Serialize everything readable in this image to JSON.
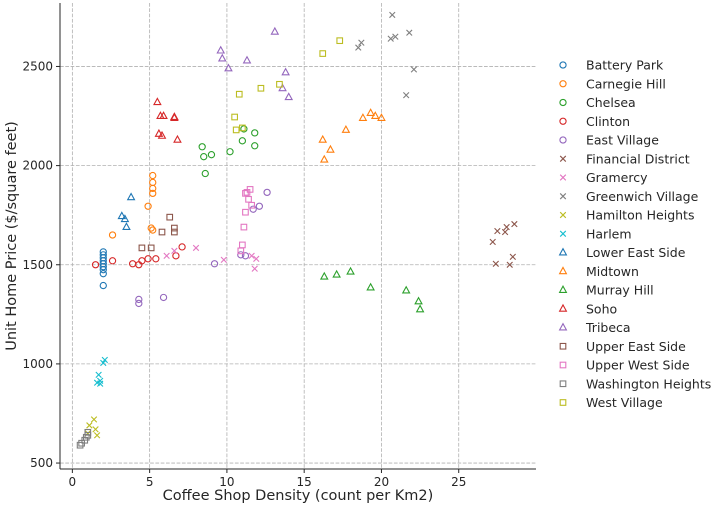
{
  "chart_data": {
    "type": "scatter",
    "title": "",
    "xlabel": "Coffee Shop Density (count per Km2)",
    "ylabel": "Unit Home Price ($/square feet)",
    "xlim": [
      -0.8,
      30
    ],
    "ylim": [
      470,
      2820
    ],
    "xticks": [
      0,
      5,
      10,
      15,
      20,
      25
    ],
    "yticks": [
      500,
      1000,
      1500,
      2000,
      2500
    ],
    "grid": true,
    "grid_style": "dashed",
    "legend_position": "right",
    "series": [
      {
        "name": "Battery Park",
        "color": "#1f77b4",
        "marker": "circle",
        "points": [
          [
            2.0,
            1395
          ],
          [
            2.0,
            1455
          ],
          [
            2.0,
            1475
          ],
          [
            2.0,
            1490
          ],
          [
            2.0,
            1505
          ],
          [
            2.0,
            1520
          ],
          [
            2.0,
            1535
          ],
          [
            2.0,
            1550
          ],
          [
            2.0,
            1565
          ]
        ]
      },
      {
        "name": "Carnegie Hill",
        "color": "#ff7f0e",
        "marker": "circle",
        "points": [
          [
            2.6,
            1650
          ],
          [
            4.9,
            1795
          ],
          [
            5.1,
            1685
          ],
          [
            5.2,
            1675
          ],
          [
            5.2,
            1860
          ],
          [
            5.2,
            1885
          ],
          [
            5.2,
            1915
          ],
          [
            5.2,
            1950
          ]
        ]
      },
      {
        "name": "Chelsea",
        "color": "#2ca02c",
        "marker": "circle",
        "points": [
          [
            8.4,
            2095
          ],
          [
            8.5,
            2045
          ],
          [
            8.6,
            1960
          ],
          [
            9.0,
            2055
          ],
          [
            10.2,
            2070
          ],
          [
            11.0,
            2125
          ],
          [
            11.1,
            2185
          ],
          [
            11.8,
            2100
          ],
          [
            11.8,
            2165
          ]
        ]
      },
      {
        "name": "Clinton",
        "color": "#d62728",
        "marker": "circle",
        "points": [
          [
            1.5,
            1500
          ],
          [
            2.6,
            1520
          ],
          [
            3.9,
            1505
          ],
          [
            4.3,
            1500
          ],
          [
            4.5,
            1520
          ],
          [
            4.9,
            1530
          ],
          [
            5.4,
            1530
          ],
          [
            6.7,
            1545
          ],
          [
            7.1,
            1590
          ]
        ]
      },
      {
        "name": "East Village",
        "color": "#9467bd",
        "marker": "circle",
        "points": [
          [
            4.3,
            1305
          ],
          [
            4.3,
            1325
          ],
          [
            5.9,
            1335
          ],
          [
            9.2,
            1505
          ],
          [
            10.9,
            1550
          ],
          [
            11.2,
            1545
          ],
          [
            11.7,
            1780
          ],
          [
            12.1,
            1795
          ],
          [
            12.6,
            1865
          ]
        ]
      },
      {
        "name": "Financial District",
        "color": "#8c564b",
        "marker": "x",
        "points": [
          [
            27.2,
            1615
          ],
          [
            27.4,
            1505
          ],
          [
            27.5,
            1670
          ],
          [
            28.0,
            1665
          ],
          [
            28.1,
            1690
          ],
          [
            28.3,
            1500
          ],
          [
            28.5,
            1540
          ],
          [
            28.6,
            1705
          ]
        ]
      },
      {
        "name": "Gramercy",
        "color": "#e377c2",
        "marker": "x",
        "points": [
          [
            6.1,
            1545
          ],
          [
            6.6,
            1570
          ],
          [
            8.0,
            1585
          ],
          [
            9.8,
            1525
          ],
          [
            11.6,
            1545
          ],
          [
            11.8,
            1480
          ],
          [
            11.9,
            1530
          ]
        ]
      },
      {
        "name": "Greenwich Village",
        "color": "#7f7f7f",
        "marker": "x",
        "points": [
          [
            18.5,
            2595
          ],
          [
            18.7,
            2620
          ],
          [
            20.6,
            2640
          ],
          [
            20.7,
            2760
          ],
          [
            20.9,
            2650
          ],
          [
            21.6,
            2355
          ],
          [
            21.8,
            2670
          ],
          [
            22.1,
            2485
          ]
        ]
      },
      {
        "name": "Hamilton Heights",
        "color": "#bcbd22",
        "marker": "x",
        "points": [
          [
            1.0,
            650
          ],
          [
            1.1,
            690
          ],
          [
            1.4,
            720
          ],
          [
            1.5,
            670
          ],
          [
            1.6,
            640
          ]
        ]
      },
      {
        "name": "Harlem",
        "color": "#17becf",
        "marker": "x",
        "points": [
          [
            1.6,
            905
          ],
          [
            1.7,
            945
          ],
          [
            1.8,
            900
          ],
          [
            1.8,
            915
          ],
          [
            2.0,
            1005
          ],
          [
            2.1,
            1020
          ]
        ]
      },
      {
        "name": "Lower East Side",
        "color": "#1f77b4",
        "marker": "triangle",
        "points": [
          [
            3.2,
            1745
          ],
          [
            3.4,
            1730
          ],
          [
            3.5,
            1690
          ],
          [
            3.8,
            1840
          ]
        ]
      },
      {
        "name": "Midtown",
        "color": "#ff7f0e",
        "marker": "triangle",
        "points": [
          [
            16.2,
            2130
          ],
          [
            16.3,
            2030
          ],
          [
            16.7,
            2080
          ],
          [
            17.7,
            2180
          ],
          [
            18.8,
            2240
          ],
          [
            19.3,
            2265
          ],
          [
            19.6,
            2250
          ],
          [
            20.0,
            2240
          ]
        ]
      },
      {
        "name": "Murray Hill",
        "color": "#2ca02c",
        "marker": "triangle",
        "points": [
          [
            16.3,
            1440
          ],
          [
            17.1,
            1450
          ],
          [
            18.0,
            1465
          ],
          [
            19.3,
            1385
          ],
          [
            21.6,
            1370
          ],
          [
            22.4,
            1315
          ],
          [
            22.5,
            1275
          ]
        ]
      },
      {
        "name": "Soho",
        "color": "#d62728",
        "marker": "triangle",
        "points": [
          [
            5.5,
            2320
          ],
          [
            5.6,
            2160
          ],
          [
            5.7,
            2250
          ],
          [
            5.8,
            2150
          ],
          [
            5.9,
            2250
          ],
          [
            6.6,
            2245
          ],
          [
            6.6,
            2240
          ],
          [
            6.8,
            2130
          ]
        ]
      },
      {
        "name": "Tribeca",
        "color": "#9467bd",
        "marker": "triangle",
        "points": [
          [
            9.6,
            2580
          ],
          [
            9.7,
            2540
          ],
          [
            10.1,
            2490
          ],
          [
            11.3,
            2530
          ],
          [
            13.1,
            2675
          ],
          [
            13.6,
            2390
          ],
          [
            13.8,
            2470
          ],
          [
            14.0,
            2345
          ]
        ]
      },
      {
        "name": "Upper East Side",
        "color": "#8c564b",
        "marker": "square",
        "points": [
          [
            4.5,
            1585
          ],
          [
            5.1,
            1585
          ],
          [
            5.8,
            1665
          ],
          [
            6.3,
            1740
          ],
          [
            6.6,
            1685
          ],
          [
            6.6,
            1665
          ]
        ]
      },
      {
        "name": "Upper West Side",
        "color": "#e377c2",
        "marker": "square",
        "points": [
          [
            10.9,
            1570
          ],
          [
            11.0,
            1600
          ],
          [
            11.1,
            1690
          ],
          [
            11.2,
            1765
          ],
          [
            11.2,
            1860
          ],
          [
            11.3,
            1865
          ],
          [
            11.4,
            1830
          ],
          [
            11.5,
            1880
          ],
          [
            11.6,
            1800
          ]
        ]
      },
      {
        "name": "Washington Heights",
        "color": "#7f7f7f",
        "marker": "square",
        "points": [
          [
            0.5,
            590
          ],
          [
            0.6,
            600
          ],
          [
            0.8,
            615
          ],
          [
            0.9,
            630
          ],
          [
            1.0,
            640
          ],
          [
            1.0,
            655
          ]
        ]
      },
      {
        "name": "West Village",
        "color": "#bcbd22",
        "marker": "square",
        "points": [
          [
            10.5,
            2245
          ],
          [
            10.6,
            2180
          ],
          [
            10.8,
            2360
          ],
          [
            11.0,
            2190
          ],
          [
            12.2,
            2390
          ],
          [
            13.4,
            2410
          ],
          [
            16.2,
            2565
          ],
          [
            17.3,
            2630
          ]
        ]
      }
    ]
  }
}
